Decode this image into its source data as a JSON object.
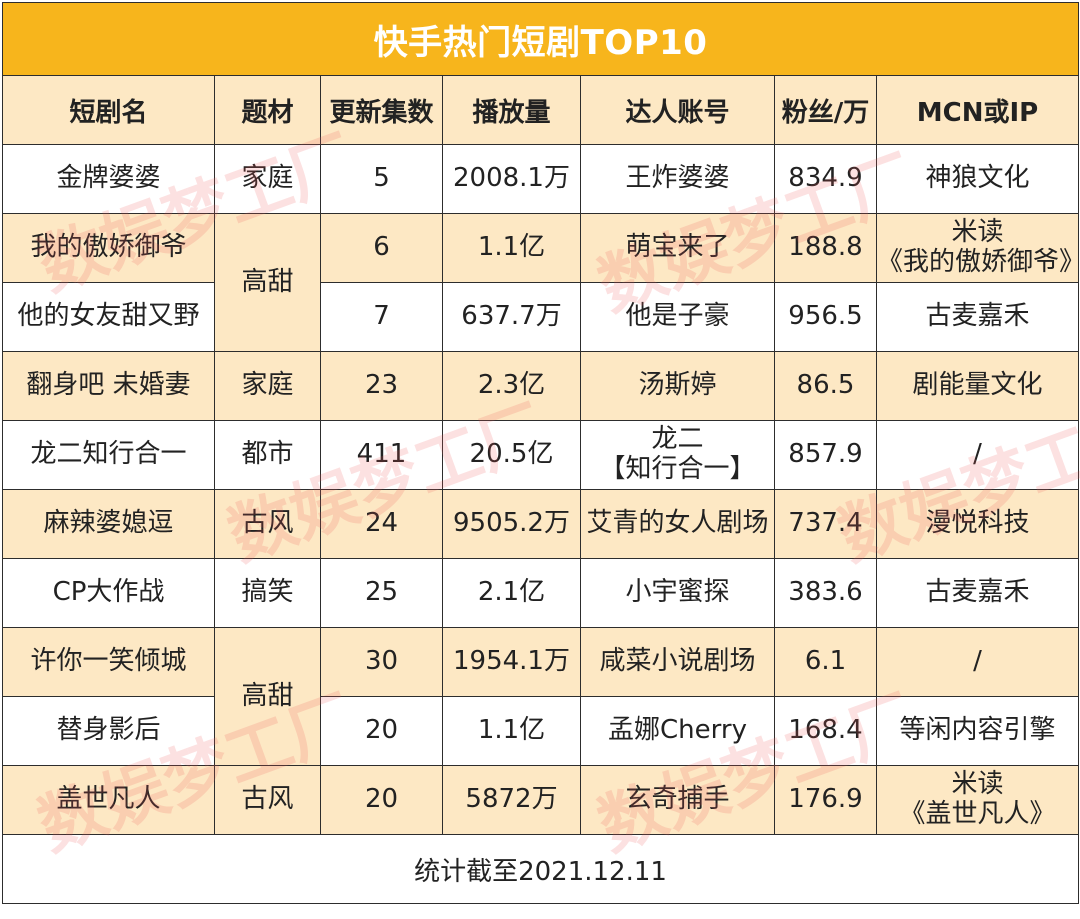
{
  "title": "快手热门短剧TOP10",
  "headers": [
    "短剧名",
    "题材",
    "更新集数",
    "播放量",
    "达人账号",
    "粉丝/万",
    "MCN或IP"
  ],
  "rows": [
    {
      "name": "金牌婆婆",
      "genre": "家庭",
      "episodes": "5",
      "plays": "2008.1万",
      "account": "王炸婆婆",
      "fans": "834.9",
      "mcn": "神狼文化"
    },
    {
      "name": "我的傲娇御爷",
      "genre": "高甜",
      "episodes": "6",
      "plays": "1.1亿",
      "account": "萌宝来了",
      "fans": "188.8",
      "mcn_line1": "米读",
      "mcn_line2": "《我的傲娇御爷》"
    },
    {
      "name": "他的女友甜又野",
      "episodes": "7",
      "plays": "637.7万",
      "account": "他是子豪",
      "fans": "956.5",
      "mcn": "古麦嘉禾"
    },
    {
      "name": "翻身吧 未婚妻",
      "genre": "家庭",
      "episodes": "23",
      "plays": "2.3亿",
      "account": "汤斯婷",
      "fans": "86.5",
      "mcn": "剧能量文化"
    },
    {
      "name": "龙二知行合一",
      "genre": "都市",
      "episodes": "411",
      "plays": "20.5亿",
      "account_line1": "龙二",
      "account_line2": "【知行合一】",
      "fans": "857.9",
      "mcn": "/"
    },
    {
      "name": "麻辣婆媳逗",
      "genre": "古风",
      "episodes": "24",
      "plays": "9505.2万",
      "account": "艾青的女人剧场",
      "fans": "737.4",
      "mcn": "漫悦科技"
    },
    {
      "name": "CP大作战",
      "genre": "搞笑",
      "episodes": "25",
      "plays": "2.1亿",
      "account": "小宇蜜探",
      "fans": "383.6",
      "mcn": "古麦嘉禾"
    },
    {
      "name": "许你一笑倾城",
      "genre": "高甜",
      "episodes": "30",
      "plays": "1954.1万",
      "account": "咸菜小说剧场",
      "fans": "6.1",
      "mcn": "/"
    },
    {
      "name": "替身影后",
      "episodes": "20",
      "plays": "1.1亿",
      "account": "孟娜Cherry",
      "fans": "168.4",
      "mcn": "等闲内容引擎"
    },
    {
      "name": "盖世凡人",
      "genre": "古风",
      "episodes": "20",
      "plays": "5872万",
      "account": "玄奇捕手",
      "fans": "176.9",
      "mcn_line1": "米读",
      "mcn_line2": "《盖世凡人》"
    }
  ],
  "footer": "统计截至2021.12.11",
  "watermark": "数娱梦工厂",
  "colors": {
    "title_bg": "#f7b51c",
    "band_bg": "#fde8c4",
    "border": "#2d2d2d"
  }
}
